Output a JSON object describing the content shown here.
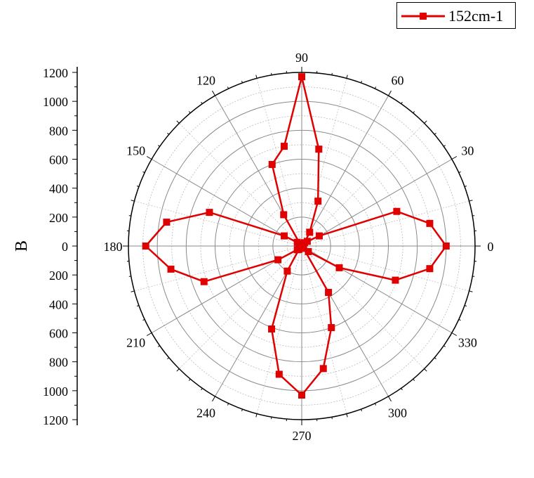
{
  "chart_data": {
    "type": "polar-line",
    "legend": {
      "placement": "top-right",
      "entries": [
        "152cm-1"
      ]
    },
    "radial_axis": {
      "label": "B",
      "range": [
        0,
        1200
      ],
      "ticks": [
        0,
        200,
        400,
        600,
        800,
        1000,
        1200
      ],
      "tick_labels_up": [
        "1200",
        "1000",
        "800",
        "600",
        "400",
        "200",
        "0"
      ],
      "tick_labels_down": [
        "200",
        "400",
        "600",
        "800",
        "1000",
        "1200"
      ]
    },
    "angular_axis": {
      "unit": "degrees",
      "ticks": [
        0,
        30,
        60,
        90,
        120,
        150,
        180,
        210,
        240,
        270,
        300,
        330
      ],
      "tick_labels": [
        "0",
        "30",
        "60",
        "90",
        "120",
        "150",
        "180",
        "210",
        "240",
        "270",
        "300",
        "330"
      ]
    },
    "grid": true,
    "series": [
      {
        "name": "152cm-1",
        "color": "#e00000",
        "theta": [
          0,
          10,
          20,
          30,
          40,
          50,
          60,
          70,
          80,
          90,
          100,
          110,
          120,
          130,
          140,
          150,
          160,
          170,
          180,
          190,
          200,
          210,
          220,
          230,
          240,
          250,
          260,
          270,
          280,
          290,
          300,
          310,
          320,
          330,
          340,
          350
        ],
        "r": [
          1000,
          900,
          700,
          140,
          50,
          30,
          110,
          330,
          680,
          1170,
          700,
          600,
          250,
          20,
          40,
          140,
          680,
          950,
          1080,
          920,
          720,
          190,
          40,
          30,
          200,
          610,
          900,
          1030,
          860,
          600,
          370,
          20,
          60,
          300,
          690,
          900
        ]
      }
    ]
  }
}
